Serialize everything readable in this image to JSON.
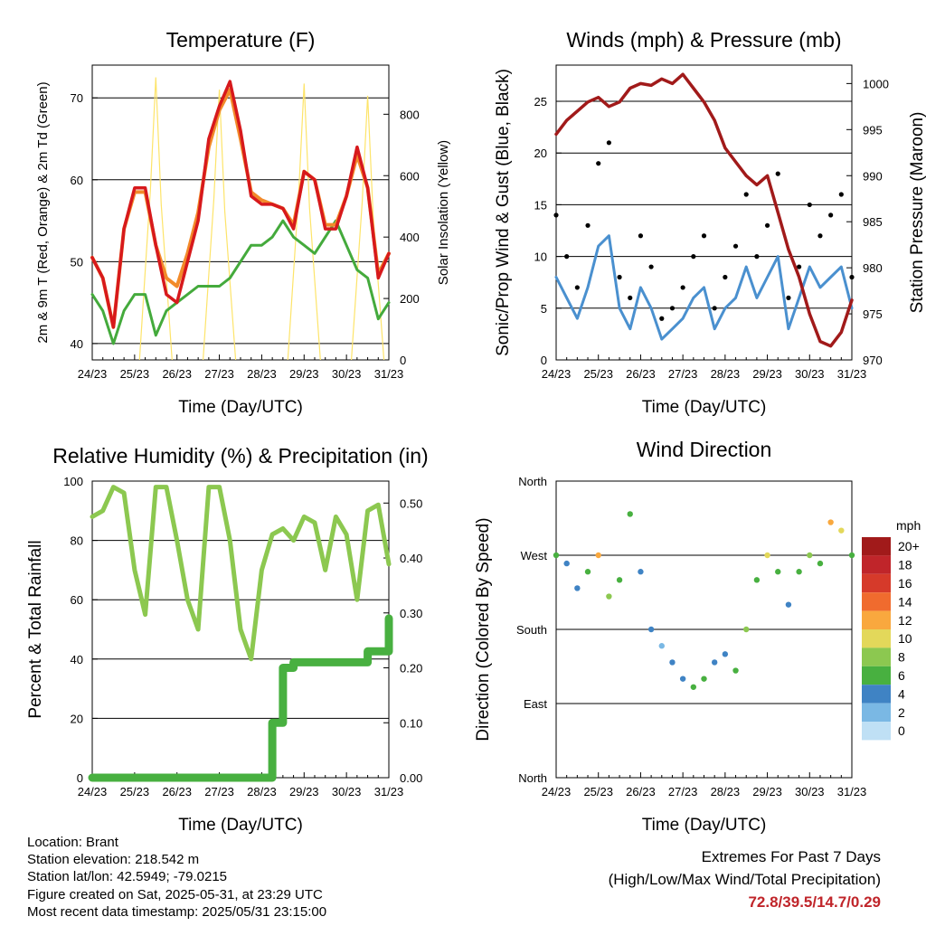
{
  "x_ticks": [
    "24/23",
    "25/23",
    "26/23",
    "27/23",
    "28/23",
    "29/23",
    "30/23",
    "31/23"
  ],
  "xlabel": "Time (Day/UTC)",
  "colors": {
    "temp_red": "#d7191c",
    "temp_orange": "#f28a2a",
    "dewpoint_green": "#44aa3c",
    "solar_yellow": "#fde46a",
    "gust_black": "#000000",
    "wind_blue": "#4a90cf",
    "pressure_maroon": "#a11a1a",
    "rh_green": "#8cc850",
    "rain_green": "#48b040",
    "extremes_red": "#c0252a"
  },
  "chart_data": [
    {
      "type": "line",
      "title": "Temperature (F)",
      "xlabel": "Time (Day/UTC)",
      "ylabel": "2m & 9m T (Red, Orange) & 2m Td (Green)",
      "ylabel_right": "Solar Insolation (Yellow)",
      "ylim": [
        38,
        74
      ],
      "yticks": [
        40,
        50,
        60,
        70
      ],
      "ylim_right": [
        0,
        960
      ],
      "yticks_right": [
        0,
        200,
        400,
        600,
        800
      ],
      "x_days": [
        24,
        24.25,
        24.5,
        24.75,
        25,
        25.25,
        25.5,
        25.75,
        26,
        26.25,
        26.5,
        26.75,
        27,
        27.25,
        27.5,
        27.75,
        28,
        28.25,
        28.5,
        28.75,
        29,
        29.25,
        29.5,
        29.75,
        30,
        30.25,
        30.5,
        30.75,
        31
      ],
      "series": [
        {
          "name": "2m T",
          "color": "#d7191c",
          "values": [
            50.5,
            48,
            42,
            54,
            59,
            59,
            52,
            46,
            45,
            50,
            55,
            65,
            69,
            72,
            66,
            58,
            57,
            57,
            56.5,
            54,
            61,
            60,
            54,
            54,
            58,
            64,
            59,
            48,
            51
          ]
        },
        {
          "name": "9m T",
          "color": "#f28a2a",
          "values": [
            50.5,
            48,
            42,
            54,
            58.5,
            58.5,
            52,
            48,
            47,
            51,
            56,
            64,
            68.5,
            71,
            65,
            58.5,
            57.5,
            57,
            56.5,
            54.5,
            61,
            60,
            54.5,
            54.5,
            58,
            63,
            59,
            48.5,
            51
          ]
        },
        {
          "name": "2m Td",
          "color": "#44aa3c",
          "values": [
            46,
            44,
            40,
            44,
            46,
            46,
            41,
            44,
            45,
            46,
            47,
            47,
            47,
            48,
            50,
            52,
            52,
            53,
            55,
            53,
            52,
            51,
            53,
            55,
            52,
            49,
            48,
            43,
            45
          ]
        }
      ],
      "solar_values": [
        0,
        0,
        0,
        0,
        0,
        0,
        920,
        0,
        0,
        0,
        0,
        0,
        880,
        0,
        0,
        0,
        0,
        0,
        0,
        0,
        900,
        0,
        0,
        0,
        0,
        0,
        860,
        0,
        0
      ]
    },
    {
      "type": "scatter",
      "title": "Winds (mph) & Pressure (mb)",
      "xlabel": "Time (Day/UTC)",
      "ylabel": "Sonic/Prop Wind & Gust (Blue, Black)",
      "ylabel_right": "Station Pressure (Maroon)",
      "ylim": [
        0,
        28.5
      ],
      "yticks": [
        0,
        5,
        10,
        15,
        20,
        25
      ],
      "ylim_right": [
        970,
        1002
      ],
      "yticks_right": [
        970,
        975,
        980,
        985,
        990,
        995,
        1000
      ],
      "x_days": [
        24,
        24.25,
        24.5,
        24.75,
        25,
        25.25,
        25.5,
        25.75,
        26,
        26.25,
        26.5,
        26.75,
        27,
        27.25,
        27.5,
        27.75,
        28,
        28.25,
        28.5,
        28.75,
        29,
        29.25,
        29.5,
        29.75,
        30,
        30.25,
        30.5,
        30.75,
        31
      ],
      "series": [
        {
          "name": "Gust",
          "color": "#000000",
          "values": [
            14,
            10,
            7,
            13,
            19,
            21,
            8,
            6,
            12,
            9,
            4,
            5,
            7,
            10,
            12,
            5,
            8,
            11,
            16,
            10,
            13,
            18,
            6,
            9,
            15,
            12,
            14,
            16,
            8
          ]
        },
        {
          "name": "Wind",
          "color": "#4a90cf",
          "values": [
            8,
            6,
            4,
            7,
            11,
            12,
            5,
            3,
            7,
            5,
            2,
            3,
            4,
            6,
            7,
            3,
            5,
            6,
            9,
            6,
            8,
            10,
            3,
            6,
            9,
            7,
            8,
            9,
            5
          ]
        },
        {
          "name": "Pressure",
          "color": "#a11a1a",
          "values": [
            994.5,
            996,
            997,
            998,
            998.5,
            997.5,
            998,
            999.5,
            1000,
            999.8,
            1000.5,
            1000,
            1001,
            999.5,
            998,
            996,
            993,
            991.5,
            990,
            989,
            990,
            986,
            982,
            979,
            975,
            972,
            971.5,
            973,
            976.5
          ]
        }
      ]
    },
    {
      "type": "line",
      "title": "Relative Humidity (%) & Precipitation (in)",
      "xlabel": "Time (Day/UTC)",
      "ylabel": "Percent & Total Rainfall",
      "ylim": [
        0,
        100
      ],
      "yticks": [
        0,
        20,
        40,
        60,
        80,
        100
      ],
      "ylim_right": [
        0,
        0.54
      ],
      "yticks_right": [
        "0.00",
        "0.10",
        "0.20",
        "0.30",
        "0.40",
        "0.50"
      ],
      "x_days": [
        24,
        24.25,
        24.5,
        24.75,
        25,
        25.25,
        25.5,
        25.75,
        26,
        26.25,
        26.5,
        26.75,
        27,
        27.25,
        27.5,
        27.75,
        28,
        28.25,
        28.5,
        28.75,
        29,
        29.25,
        29.5,
        29.75,
        30,
        30.25,
        30.5,
        30.75,
        31
      ],
      "series": [
        {
          "name": "RH",
          "color": "#8cc850",
          "values": [
            88,
            90,
            98,
            96,
            70,
            55,
            98,
            98,
            80,
            60,
            50,
            98,
            98,
            80,
            50,
            40,
            70,
            82,
            84,
            80,
            88,
            86,
            70,
            88,
            82,
            60,
            90,
            92,
            72
          ]
        },
        {
          "name": "Precip",
          "color": "#48b040",
          "values": [
            0,
            0,
            0,
            0,
            0,
            0,
            0,
            0,
            0,
            0,
            0,
            0,
            0,
            0,
            0,
            0,
            0,
            0.1,
            0.2,
            0.21,
            0.21,
            0.21,
            0.21,
            0.21,
            0.21,
            0.21,
            0.23,
            0.23,
            0.29
          ]
        }
      ]
    },
    {
      "type": "scatter",
      "title": "Wind Direction",
      "xlabel": "Time (Day/UTC)",
      "ylabel": "Direction (Colored By Speed)",
      "ylim": [
        0,
        360
      ],
      "yticks": [
        "North",
        "East",
        "South",
        "West",
        "North"
      ],
      "legend_title": "mph",
      "legend_labels": [
        "20+",
        "18",
        "16",
        "14",
        "12",
        "10",
        "8",
        "6",
        "4",
        "2",
        "0"
      ],
      "legend_colors": [
        "#a11a1a",
        "#c0252a",
        "#d63a2a",
        "#f06b2e",
        "#f9a83e",
        "#e3d85a",
        "#8cc850",
        "#48b040",
        "#3f83c4",
        "#7ab8e4",
        "#bfe0f5"
      ],
      "x_days": [
        24,
        24.25,
        24.5,
        24.75,
        25,
        25.25,
        25.5,
        25.75,
        26,
        26.25,
        26.5,
        26.75,
        27,
        27.25,
        27.5,
        27.75,
        28,
        28.25,
        28.5,
        28.75,
        29,
        29.25,
        29.5,
        29.75,
        30,
        30.25,
        30.5,
        30.75,
        31
      ],
      "directions": [
        270,
        260,
        230,
        250,
        270,
        220,
        240,
        320,
        250,
        180,
        160,
        140,
        120,
        110,
        120,
        140,
        150,
        130,
        180,
        240,
        270,
        250,
        210,
        250,
        270,
        260,
        310,
        300,
        270
      ],
      "speeds": [
        5,
        4,
        3,
        6,
        12,
        8,
        5,
        6,
        4,
        3,
        2,
        3,
        4,
        6,
        5,
        3,
        4,
        6,
        7,
        5,
        9,
        6,
        3,
        5,
        8,
        6,
        11,
        9,
        5
      ]
    }
  ],
  "info": {
    "location": "Location: Brant",
    "elevation": "Station elevation: 218.542 m",
    "latlon": "Station lat/lon: 42.5949; -79.0215",
    "created": "Figure created on Sat, 2025-05-31, at 23:29 UTC",
    "recent": "Most recent data timestamp: 2025/05/31 23:15:00"
  },
  "extremes": {
    "title": "Extremes For Past 7 Days",
    "subtitle": "(High/Low/Max Wind/Total Precipitation)",
    "values": "72.8/39.5/14.7/0.29"
  }
}
